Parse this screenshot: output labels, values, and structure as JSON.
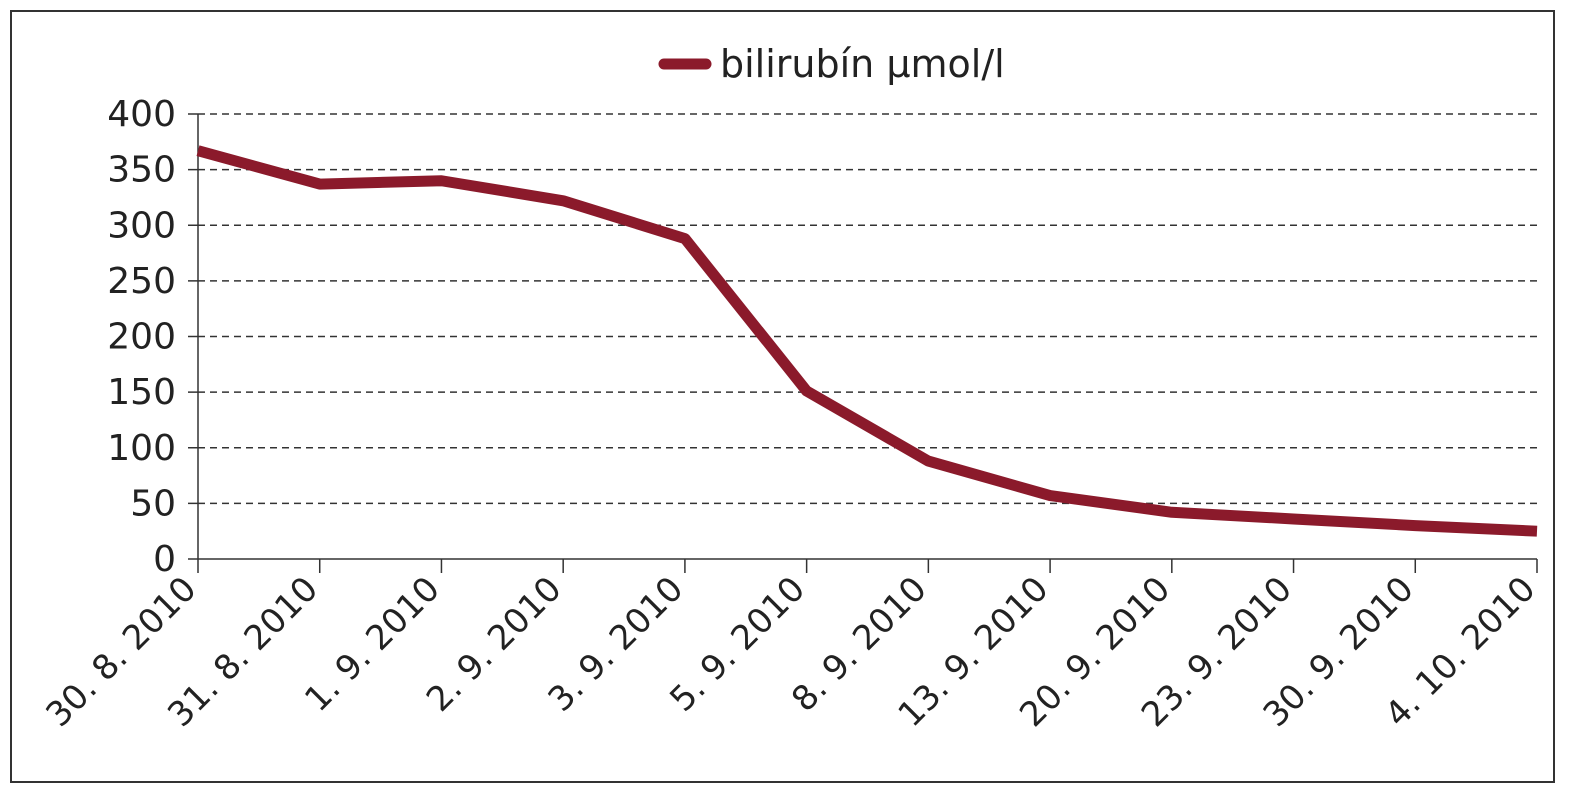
{
  "chart_data": {
    "type": "line",
    "title": "",
    "xlabel": "",
    "ylabel": "",
    "categories": [
      "30. 8. 2010",
      "31. 8. 2010",
      "1. 9. 2010",
      "2. 9. 2010",
      "3. 9. 2010",
      "5. 9. 2010",
      "8. 9. 2010",
      "13. 9. 2010",
      "20. 9. 2010",
      "23. 9. 2010",
      "30. 9. 2010",
      "4. 10. 2010"
    ],
    "series": [
      {
        "name": "bilirubín µmol/l",
        "color": "#8b1a2b",
        "values": [
          367,
          337,
          340,
          322,
          288,
          151,
          88,
          57,
          42,
          36,
          30,
          25
        ]
      }
    ],
    "ylim": [
      0,
      400
    ],
    "yticks": [
      0,
      50,
      100,
      150,
      200,
      250,
      300,
      350,
      400
    ],
    "grid": "horizontal-dashed",
    "legend_position": "top-center"
  }
}
